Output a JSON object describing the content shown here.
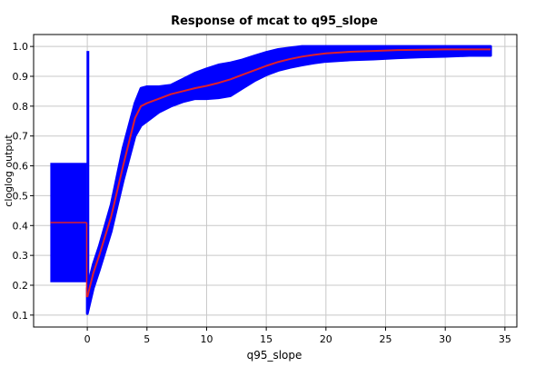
{
  "chart_data": {
    "type": "line",
    "title": "Response of mcat to q95_slope",
    "xlabel": "q95_slope",
    "ylabel": "cloglog output",
    "xlim": [
      -4.5,
      36
    ],
    "ylim": [
      0.06,
      1.04
    ],
    "xticks": [
      0,
      5,
      10,
      15,
      20,
      25,
      30,
      35
    ],
    "yticks": [
      0.1,
      0.2,
      0.3,
      0.4,
      0.5,
      0.6,
      0.7,
      0.8,
      0.9,
      1.0
    ],
    "xtick_labels": [
      "0",
      "5",
      "10",
      "15",
      "20",
      "25",
      "30",
      "35"
    ],
    "ytick_labels": [
      "0.1",
      "0.2",
      "0.3",
      "0.4",
      "0.5",
      "0.6",
      "0.7",
      "0.8",
      "0.9",
      "1.0"
    ],
    "grid": true,
    "colors": {
      "band": "#0000ff",
      "mean": "#e0202a",
      "grid": "#c8c8c8"
    },
    "categorical_box": {
      "x_range": [
        -3.1,
        -0.05
      ],
      "lower": 0.21,
      "upper": 0.61,
      "mean": 0.41
    },
    "spike": {
      "x": 0.05,
      "lower": 0.2,
      "upper": 0.985
    },
    "series": [
      {
        "role": "mean",
        "x": [
          0.0,
          0.5,
          1.0,
          2.0,
          3.0,
          4.0,
          4.5,
          5.0,
          6.0,
          7.0,
          8.0,
          9.0,
          10.0,
          11.0,
          12.0,
          13.0,
          14.0,
          15.0,
          16.0,
          17.0,
          18.0,
          19.0,
          20.0,
          22.0,
          24.0,
          26.0,
          28.0,
          30.0,
          32.0,
          33.8
        ],
        "y": [
          0.16,
          0.24,
          0.3,
          0.43,
          0.6,
          0.76,
          0.8,
          0.81,
          0.825,
          0.84,
          0.85,
          0.86,
          0.868,
          0.878,
          0.89,
          0.905,
          0.92,
          0.935,
          0.948,
          0.958,
          0.966,
          0.972,
          0.977,
          0.982,
          0.985,
          0.988,
          0.989,
          0.99,
          0.99,
          0.99
        ]
      },
      {
        "role": "upper",
        "x": [
          0.0,
          0.5,
          1.0,
          2.0,
          3.0,
          4.0,
          4.5,
          5.0,
          6.0,
          7.0,
          8.0,
          9.0,
          10.0,
          11.0,
          12.0,
          13.0,
          14.0,
          15.0,
          16.0,
          17.0,
          18.0,
          19.0,
          20.0,
          22.0,
          24.0,
          26.0,
          28.0,
          30.0,
          32.0,
          33.8
        ],
        "y": [
          0.19,
          0.27,
          0.33,
          0.47,
          0.66,
          0.81,
          0.86,
          0.865,
          0.865,
          0.87,
          0.89,
          0.91,
          0.925,
          0.938,
          0.945,
          0.955,
          0.968,
          0.98,
          0.99,
          0.995,
          1.0,
          1.0,
          1.0,
          1.0,
          1.0,
          1.0,
          1.0,
          1.0,
          1.0,
          1.0
        ]
      },
      {
        "role": "lower",
        "x": [
          0.0,
          0.5,
          1.0,
          2.0,
          3.0,
          4.0,
          4.5,
          5.0,
          6.0,
          7.0,
          8.0,
          9.0,
          10.0,
          11.0,
          12.0,
          13.0,
          14.0,
          15.0,
          16.0,
          17.0,
          18.0,
          19.0,
          20.0,
          22.0,
          24.0,
          26.0,
          28.0,
          30.0,
          32.0,
          33.8
        ],
        "y": [
          0.105,
          0.19,
          0.25,
          0.38,
          0.55,
          0.7,
          0.735,
          0.75,
          0.78,
          0.8,
          0.815,
          0.825,
          0.825,
          0.828,
          0.835,
          0.86,
          0.885,
          0.905,
          0.92,
          0.93,
          0.938,
          0.945,
          0.95,
          0.955,
          0.958,
          0.962,
          0.965,
          0.967,
          0.97,
          0.97
        ]
      }
    ]
  }
}
